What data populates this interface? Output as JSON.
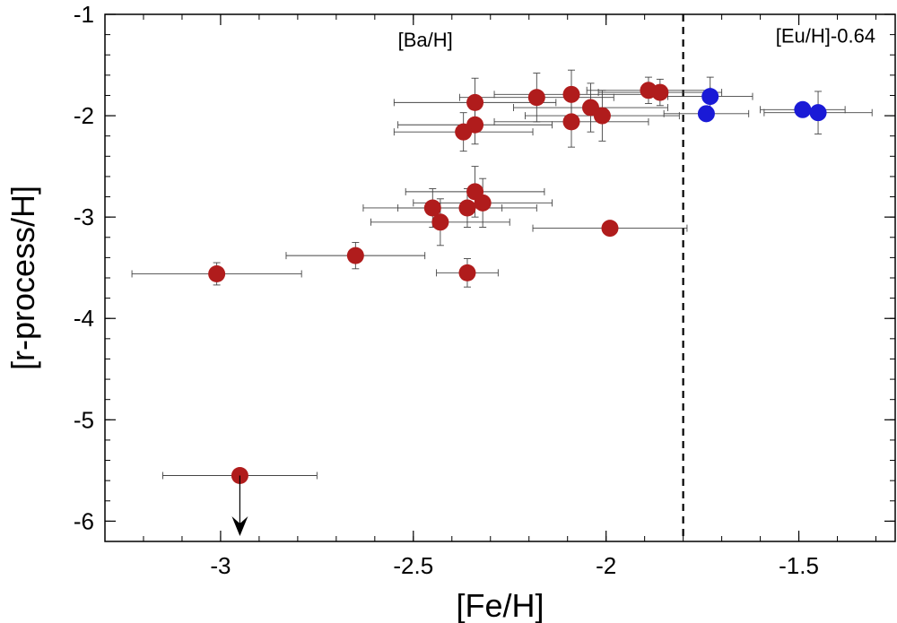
{
  "chart_data": {
    "type": "scatter",
    "xlabel": "[Fe/H]",
    "ylabel": "[r-process/H]",
    "xlim": [
      -3.3,
      -1.25
    ],
    "ylim": [
      -6.2,
      -1.0
    ],
    "xticks": [
      -3,
      -2.5,
      -2,
      -1.5
    ],
    "xtick_labels": [
      "-3",
      "-2.5",
      "-2",
      "-1.5"
    ],
    "yticks": [
      -1,
      -2,
      -3,
      -4,
      -5,
      -6
    ],
    "ytick_labels": [
      "-1",
      "-2",
      "-3",
      "-4",
      "-5",
      "-6"
    ],
    "grid": false,
    "divider_x": -1.8,
    "annotations": [
      {
        "text": "[Ba/H]",
        "x": -2.54,
        "y": -1.32
      },
      {
        "text": "[Eu/H]-0.64",
        "x": -1.56,
        "y": -1.28
      }
    ],
    "series": [
      {
        "color": "#b01c1c",
        "points": [
          {
            "x": -2.34,
            "y": -1.87,
            "xerr": 0.21,
            "yerr": 0.24
          },
          {
            "x": -2.18,
            "y": -1.82,
            "xerr": 0.2,
            "yerr": 0.24
          },
          {
            "x": -2.09,
            "y": -1.79,
            "xerr": 0.2,
            "yerr": 0.24
          },
          {
            "x": -1.89,
            "y": -1.75,
            "xerr": 0.16,
            "yerr": 0.13
          },
          {
            "x": -1.86,
            "y": -1.77,
            "xerr": 0.16,
            "yerr": 0.13
          },
          {
            "x": -2.04,
            "y": -1.92,
            "xerr": 0.2,
            "yerr": 0.24
          },
          {
            "x": -2.01,
            "y": -2.0,
            "xerr": 0.2,
            "yerr": 0.25
          },
          {
            "x": -2.09,
            "y": -2.06,
            "xerr": 0.2,
            "yerr": 0.25
          },
          {
            "x": -2.34,
            "y": -2.09,
            "xerr": 0.2,
            "yerr": 0.19
          },
          {
            "x": -2.37,
            "y": -2.16,
            "xerr": 0.18,
            "yerr": 0.19
          },
          {
            "x": -2.34,
            "y": -2.75,
            "xerr": 0.18,
            "yerr": 0.25
          },
          {
            "x": -2.45,
            "y": -2.91,
            "xerr": 0.18,
            "yerr": 0.19
          },
          {
            "x": -2.36,
            "y": -2.91,
            "xerr": 0.18,
            "yerr": 0.19
          },
          {
            "x": -2.32,
            "y": -2.86,
            "xerr": 0.18,
            "yerr": 0.24
          },
          {
            "x": -2.43,
            "y": -3.05,
            "xerr": 0.18,
            "yerr": 0.23
          },
          {
            "x": -1.99,
            "y": -3.11,
            "xerr": 0.2,
            "yerr": 0.07
          },
          {
            "x": -2.65,
            "y": -3.38,
            "xerr": 0.18,
            "yerr": 0.13
          },
          {
            "x": -3.01,
            "y": -3.56,
            "xerr": 0.22,
            "yerr": 0.11
          },
          {
            "x": -2.36,
            "y": -3.55,
            "xerr": 0.08,
            "yerr": 0.14
          },
          {
            "x": -2.95,
            "y": -5.55,
            "xerr": 0.2,
            "yerr": 0,
            "upper_limit": true
          }
        ]
      },
      {
        "color": "#1a1ad6",
        "points": [
          {
            "x": -1.73,
            "y": -1.81,
            "xerr": 0.11,
            "yerr": 0.19
          },
          {
            "x": -1.74,
            "y": -1.98,
            "xerr": 0.11,
            "yerr": 0.0
          },
          {
            "x": -1.49,
            "y": -1.94,
            "xerr": 0.11,
            "yerr": 0.0
          },
          {
            "x": -1.45,
            "y": -1.97,
            "xerr": 0.14,
            "yerr": 0.21
          }
        ]
      }
    ]
  }
}
